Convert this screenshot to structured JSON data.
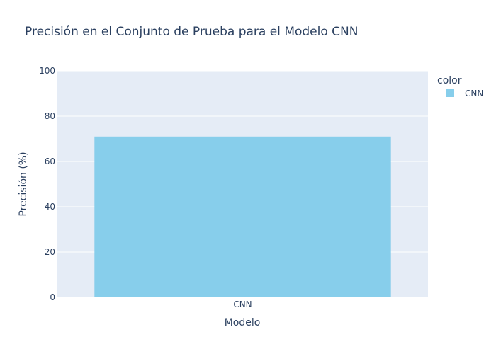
{
  "chart_data": {
    "type": "bar",
    "title": "Precisión en el Conjunto de Prueba para el Modelo CNN",
    "xlabel": "Modelo",
    "ylabel": "Precisión (%)",
    "categories": [
      "CNN"
    ],
    "series": [
      {
        "name": "CNN",
        "values": [
          71
        ],
        "color": "#87CEEB"
      }
    ],
    "ylim": [
      0,
      100
    ],
    "yticks": [
      0,
      20,
      40,
      60,
      80,
      100
    ],
    "grid": true,
    "plot_background": "#E5ECF6",
    "legend": {
      "title": "color",
      "placement": "top-right",
      "entries": [
        "CNN"
      ]
    }
  }
}
